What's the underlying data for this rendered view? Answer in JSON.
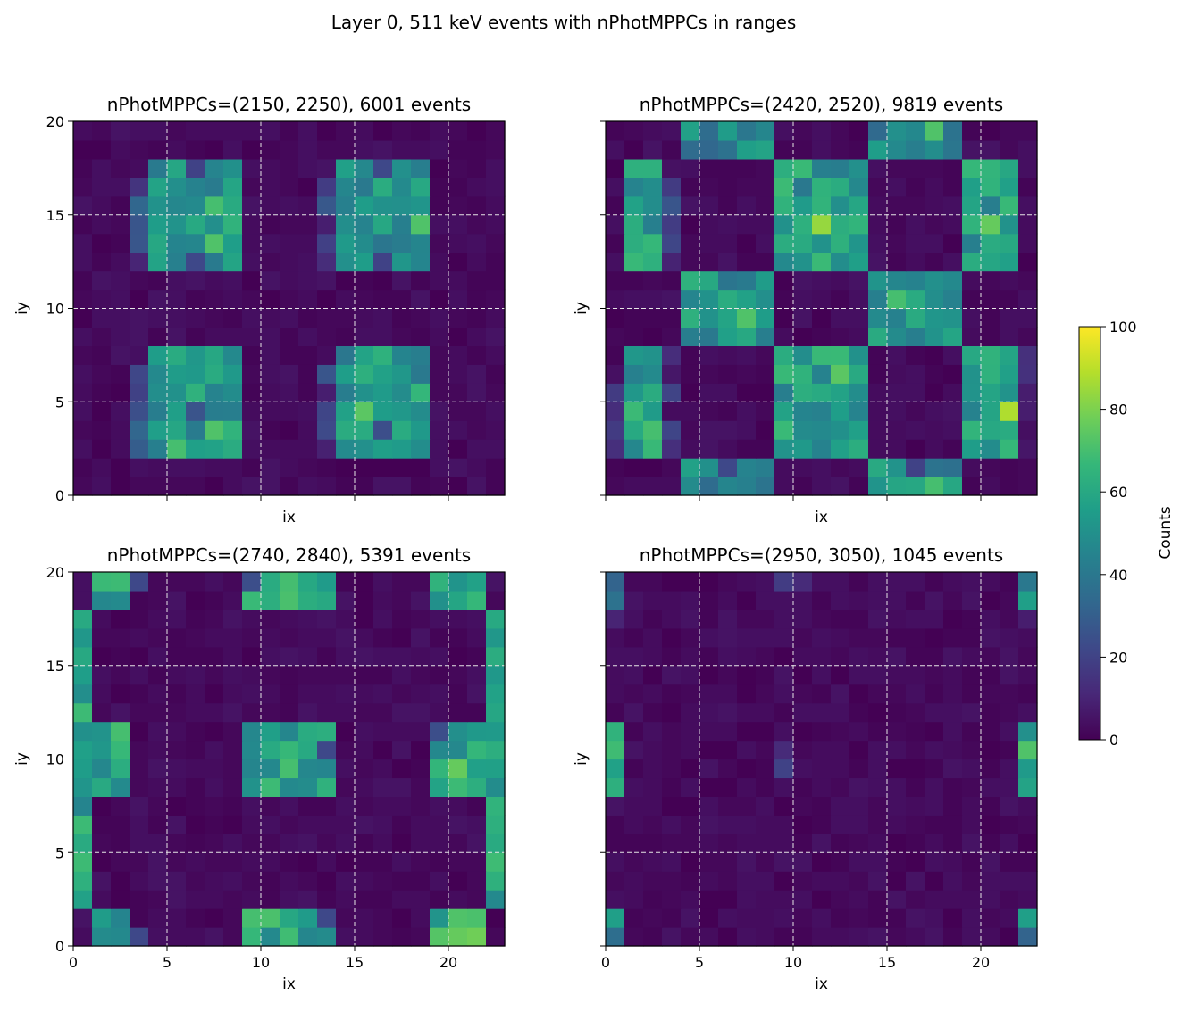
{
  "figure": {
    "suptitle": "Layer 0, 511 keV events with nPhotMPPCs in ranges",
    "colorscale": [
      "#440154",
      "#482878",
      "#3e4989",
      "#31688e",
      "#26828e",
      "#1f9e89",
      "#35b779",
      "#6ece58",
      "#b5de2b",
      "#fde725"
    ]
  },
  "colorbar": {
    "label": "Counts",
    "range": [
      0,
      100
    ],
    "ticks": [
      0,
      20,
      40,
      60,
      80,
      100
    ],
    "colormap": "viridis"
  },
  "chart_data": [
    {
      "type": "heatmap",
      "title": "nPhotMPPCs=(2150, 2250), 6001 events",
      "xlabel": "ix",
      "ylabel": "iy",
      "xlim": [
        0,
        23
      ],
      "ylim": [
        0,
        20
      ],
      "xticks": [
        0,
        5,
        10,
        15,
        20
      ],
      "yticks": [
        0,
        5,
        10,
        15,
        20
      ],
      "show_xtick_labels": false,
      "show_ytick_labels": true,
      "grid": true,
      "blocks": [
        {
          "x": [
            4,
            9
          ],
          "y": [
            12,
            18
          ],
          "level": 52
        },
        {
          "x": [
            14,
            19
          ],
          "y": [
            12,
            18
          ],
          "level": 52
        },
        {
          "x": [
            4,
            9
          ],
          "y": [
            2,
            8
          ],
          "level": 52
        },
        {
          "x": [
            14,
            19
          ],
          "y": [
            2,
            8
          ],
          "level": 52
        },
        {
          "x": [
            3,
            4
          ],
          "y": [
            12,
            17
          ],
          "level": 22
        },
        {
          "x": [
            13,
            14
          ],
          "y": [
            12,
            17
          ],
          "level": 18
        },
        {
          "x": [
            3,
            4
          ],
          "y": [
            2,
            7
          ],
          "level": 22
        },
        {
          "x": [
            13,
            14
          ],
          "y": [
            2,
            7
          ],
          "level": 16
        }
      ],
      "hot": [
        {
          "x": 7,
          "y": 15,
          "v": 70
        },
        {
          "x": 7,
          "y": 13,
          "v": 72
        },
        {
          "x": 18,
          "y": 14,
          "v": 72
        },
        {
          "x": 7,
          "y": 3,
          "v": 72
        },
        {
          "x": 15,
          "y": 4,
          "v": 74
        },
        {
          "x": 5,
          "y": 2,
          "v": 70
        },
        {
          "x": 18,
          "y": 5,
          "v": 66
        },
        {
          "x": 6,
          "y": 17,
          "v": 20
        },
        {
          "x": 16,
          "y": 17,
          "v": 22
        },
        {
          "x": 6,
          "y": 12,
          "v": 22
        },
        {
          "x": 16,
          "y": 12,
          "v": 20
        },
        {
          "x": 6,
          "y": 4,
          "v": 26
        },
        {
          "x": 16,
          "y": 3,
          "v": 24
        }
      ]
    },
    {
      "type": "heatmap",
      "title": "nPhotMPPCs=(2420, 2520), 9819 events",
      "xlabel": "ix",
      "ylabel": "iy",
      "xlim": [
        0,
        23
      ],
      "ylim": [
        0,
        20
      ],
      "xticks": [
        0,
        5,
        10,
        15,
        20
      ],
      "yticks": [
        0,
        5,
        10,
        15,
        20
      ],
      "show_xtick_labels": false,
      "show_ytick_labels": false,
      "grid": true,
      "blocks": [
        {
          "x": [
            1,
            3
          ],
          "y": [
            12,
            18
          ],
          "level": 55
        },
        {
          "x": [
            9,
            14
          ],
          "y": [
            12,
            18
          ],
          "level": 55
        },
        {
          "x": [
            19,
            22
          ],
          "y": [
            12,
            18
          ],
          "level": 55
        },
        {
          "x": [
            1,
            3
          ],
          "y": [
            2,
            8
          ],
          "level": 55
        },
        {
          "x": [
            9,
            14
          ],
          "y": [
            2,
            8
          ],
          "level": 55
        },
        {
          "x": [
            19,
            22
          ],
          "y": [
            2,
            8
          ],
          "level": 55
        },
        {
          "x": [
            4,
            9
          ],
          "y": [
            8,
            12
          ],
          "level": 52
        },
        {
          "x": [
            14,
            19
          ],
          "y": [
            8,
            12
          ],
          "level": 52
        },
        {
          "x": [
            4,
            9
          ],
          "y": [
            0,
            2
          ],
          "level": 48
        },
        {
          "x": [
            14,
            19
          ],
          "y": [
            0,
            2
          ],
          "level": 48
        },
        {
          "x": [
            4,
            9
          ],
          "y": [
            18,
            20
          ],
          "level": 46
        },
        {
          "x": [
            14,
            19
          ],
          "y": [
            18,
            20
          ],
          "level": 46
        },
        {
          "x": [
            3,
            4
          ],
          "y": [
            12,
            18
          ],
          "level": 14
        },
        {
          "x": [
            13,
            14
          ],
          "y": [
            12,
            17
          ],
          "level": 16
        },
        {
          "x": [
            3,
            4
          ],
          "y": [
            2,
            8
          ],
          "level": 14
        },
        {
          "x": [
            13,
            14
          ],
          "y": [
            2,
            7
          ],
          "level": 16
        },
        {
          "x": [
            0,
            1
          ],
          "y": [
            2,
            8
          ],
          "level": 8
        },
        {
          "x": [
            22,
            23
          ],
          "y": [
            2,
            8
          ],
          "level": 6
        }
      ],
      "hot": [
        {
          "x": 11,
          "y": 14,
          "v": 84
        },
        {
          "x": 20,
          "y": 14,
          "v": 76
        },
        {
          "x": 7,
          "y": 9,
          "v": 72
        },
        {
          "x": 12,
          "y": 6,
          "v": 74
        },
        {
          "x": 21,
          "y": 4,
          "v": 88
        },
        {
          "x": 2,
          "y": 3,
          "v": 70
        },
        {
          "x": 17,
          "y": 19,
          "v": 72
        },
        {
          "x": 17,
          "y": 0,
          "v": 70
        },
        {
          "x": 14,
          "y": 19,
          "v": 34
        },
        {
          "x": 10,
          "y": 16,
          "v": 40
        },
        {
          "x": 15,
          "y": 10,
          "v": 70
        },
        {
          "x": 6,
          "y": 1,
          "v": 22
        },
        {
          "x": 16,
          "y": 1,
          "v": 20
        }
      ]
    },
    {
      "type": "heatmap",
      "title": "nPhotMPPCs=(2740, 2840), 5391 events",
      "xlabel": "ix",
      "ylabel": "iy",
      "xlim": [
        0,
        23
      ],
      "ylim": [
        0,
        20
      ],
      "xticks": [
        0,
        5,
        10,
        15,
        20
      ],
      "yticks": [
        0,
        5,
        10,
        15,
        20
      ],
      "show_xtick_labels": true,
      "show_ytick_labels": true,
      "grid": true,
      "blocks": [
        {
          "x": [
            1,
            3
          ],
          "y": [
            18,
            20
          ],
          "level": 58
        },
        {
          "x": [
            9,
            14
          ],
          "y": [
            18,
            20
          ],
          "level": 58
        },
        {
          "x": [
            19,
            22
          ],
          "y": [
            18,
            20
          ],
          "level": 58
        },
        {
          "x": [
            0,
            1
          ],
          "y": [
            8,
            18
          ],
          "level": 56
        },
        {
          "x": [
            22,
            23
          ],
          "y": [
            8,
            18
          ],
          "level": 56
        },
        {
          "x": [
            0,
            1
          ],
          "y": [
            2,
            8
          ],
          "level": 56
        },
        {
          "x": [
            22,
            23
          ],
          "y": [
            2,
            8
          ],
          "level": 56
        },
        {
          "x": [
            1,
            3
          ],
          "y": [
            8,
            12
          ],
          "level": 58
        },
        {
          "x": [
            9,
            14
          ],
          "y": [
            8,
            12
          ],
          "level": 58
        },
        {
          "x": [
            19,
            22
          ],
          "y": [
            8,
            12
          ],
          "level": 58
        },
        {
          "x": [
            1,
            3
          ],
          "y": [
            0,
            2
          ],
          "level": 58
        },
        {
          "x": [
            9,
            14
          ],
          "y": [
            0,
            2
          ],
          "level": 58
        },
        {
          "x": [
            19,
            22
          ],
          "y": [
            0,
            2
          ],
          "level": 60
        }
      ],
      "hot": [
        {
          "x": 2,
          "y": 11,
          "v": 70
        },
        {
          "x": 11,
          "y": 9,
          "v": 70
        },
        {
          "x": 20,
          "y": 9,
          "v": 76
        },
        {
          "x": 21,
          "y": 0,
          "v": 78
        },
        {
          "x": 20,
          "y": 0,
          "v": 76
        },
        {
          "x": 0,
          "y": 6,
          "v": 68
        },
        {
          "x": 9,
          "y": 1,
          "v": 70
        },
        {
          "x": 3,
          "y": 19,
          "v": 22
        },
        {
          "x": 13,
          "y": 10,
          "v": 22
        },
        {
          "x": 3,
          "y": 0,
          "v": 22
        },
        {
          "x": 13,
          "y": 1,
          "v": 22
        },
        {
          "x": 19,
          "y": 11,
          "v": 24
        },
        {
          "x": 9,
          "y": 19,
          "v": 24
        }
      ]
    },
    {
      "type": "heatmap",
      "title": "nPhotMPPCs=(2950, 3050), 1045 events",
      "xlabel": "ix",
      "ylabel": "iy",
      "xlim": [
        0,
        23
      ],
      "ylim": [
        0,
        20
      ],
      "xticks": [
        0,
        5,
        10,
        15,
        20
      ],
      "yticks": [
        0,
        5,
        10,
        15,
        20
      ],
      "show_xtick_labels": true,
      "show_ytick_labels": false,
      "grid": true,
      "blocks": [
        {
          "x": [
            0,
            1
          ],
          "y": [
            8,
            12
          ],
          "level": 58
        },
        {
          "x": [
            22,
            23
          ],
          "y": [
            8,
            12
          ],
          "level": 60
        },
        {
          "x": [
            0,
            1
          ],
          "y": [
            18,
            20
          ],
          "level": 40
        },
        {
          "x": [
            22,
            23
          ],
          "y": [
            18,
            20
          ],
          "level": 42
        },
        {
          "x": [
            0,
            1
          ],
          "y": [
            0,
            2
          ],
          "level": 50
        },
        {
          "x": [
            22,
            23
          ],
          "y": [
            0,
            2
          ],
          "level": 44
        }
      ],
      "hot": [
        {
          "x": 22,
          "y": 10,
          "v": 72
        },
        {
          "x": 22,
          "y": 18,
          "v": 56
        },
        {
          "x": 0,
          "y": 1,
          "v": 56
        },
        {
          "x": 22,
          "y": 1,
          "v": 56
        },
        {
          "x": 22,
          "y": 19,
          "v": 40
        },
        {
          "x": 0,
          "y": 0,
          "v": 36
        },
        {
          "x": 22,
          "y": 0,
          "v": 32
        },
        {
          "x": 9,
          "y": 19,
          "v": 18
        },
        {
          "x": 10,
          "y": 19,
          "v": 12
        },
        {
          "x": 9,
          "y": 9,
          "v": 20
        },
        {
          "x": 9,
          "y": 10,
          "v": 12
        },
        {
          "x": 0,
          "y": 17,
          "v": 10
        },
        {
          "x": 22,
          "y": 17,
          "v": 8
        }
      ]
    }
  ]
}
